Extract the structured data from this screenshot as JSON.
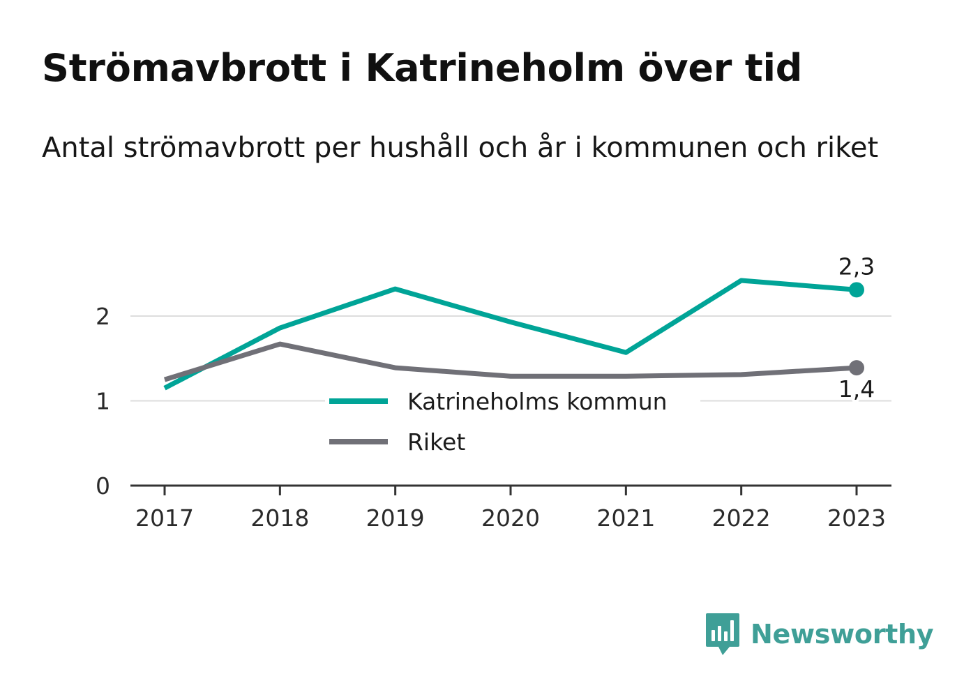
{
  "title": "Strömavbrott i Katrineholm över tid",
  "subtitle": "Antal strömavbrott per hushåll och år i kommunen och riket",
  "brand": {
    "name": "Newsworthy"
  },
  "colors": {
    "kommun": "#00a497",
    "riket": "#707077",
    "grid": "#dddddd",
    "axis": "#333333",
    "brand": "#3f9f97"
  },
  "chart_data": {
    "type": "line",
    "x": [
      "2017",
      "2018",
      "2019",
      "2020",
      "2021",
      "2022",
      "2023"
    ],
    "ylim": [
      0,
      2.5
    ],
    "yticks": [
      "0",
      "1",
      "2"
    ],
    "grid": true,
    "legend_placement": "center",
    "series": [
      {
        "name": "Katrineholms kommun",
        "values": [
          1.15,
          1.86,
          2.32,
          1.93,
          1.57,
          2.42,
          2.31
        ],
        "end_label": "2,3"
      },
      {
        "name": "Riket",
        "values": [
          1.25,
          1.67,
          1.39,
          1.29,
          1.29,
          1.31,
          1.39
        ],
        "end_label": "1,4"
      }
    ]
  }
}
